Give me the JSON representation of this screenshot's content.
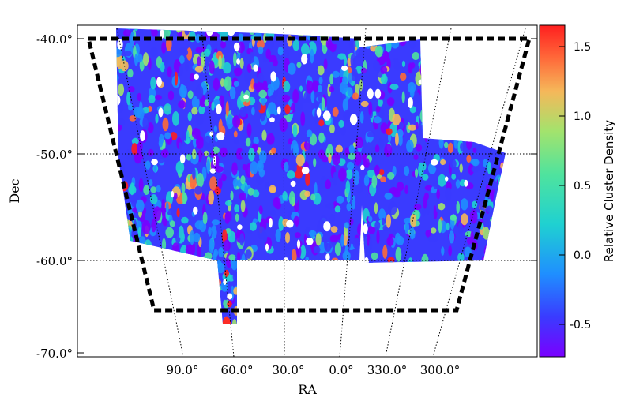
{
  "chart_data": {
    "type": "heatmap",
    "title": "",
    "xlabel": "RA",
    "ylabel": "Dec",
    "projection": "sky-map",
    "x_ticks": [
      "90.0°",
      "60.0°",
      "30.0°",
      "0.0°",
      "330.0°",
      "300.0°"
    ],
    "y_ticks": [
      "-40.0°",
      "-50.0°",
      "-60.0°",
      "-70.0°"
    ],
    "dec_range": [
      -70,
      -40
    ],
    "grid": true,
    "footprint_outline": "thick dashed black",
    "colorbar": {
      "label": "Relative Cluster Density",
      "range": [
        -0.75,
        1.65
      ],
      "ticks": [
        "-0.5",
        "0.0",
        "0.5",
        "1.0",
        "1.5"
      ],
      "colormap": "rainbow",
      "colors": [
        "#7a00ff",
        "#3a3bff",
        "#1f8fff",
        "#1fd1d1",
        "#4fe39e",
        "#a3e36d",
        "#f5b85a",
        "#ff6a3a",
        "#ff1f1f"
      ]
    },
    "colorbar_position": "right"
  }
}
